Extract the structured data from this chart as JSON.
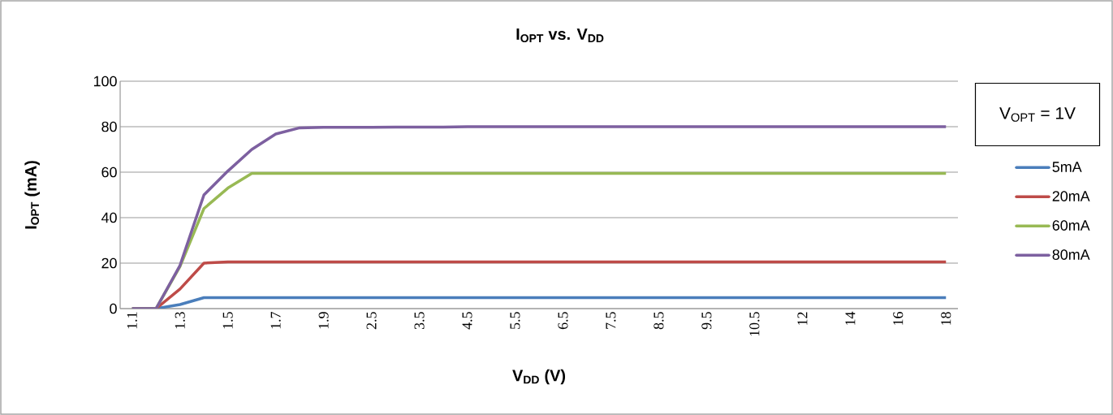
{
  "chart_data": {
    "type": "line",
    "title": "I$_{OPT}$ vs. V$_{DD}$",
    "xlabel": "V$_{DD}$ (V)",
    "ylabel": "I$_{OPT}$ (mA)",
    "legend_title": "V$_{OPT}$ = 1V",
    "categories": [
      "1.1",
      null,
      "1.3",
      null,
      "1.5",
      null,
      "1.7",
      null,
      "1.9",
      null,
      "2.5",
      null,
      "3.5",
      null,
      "4.5",
      null,
      "5.5",
      null,
      "6.5",
      null,
      "7.5",
      null,
      "8.5",
      null,
      "9.5",
      null,
      "10.5",
      null,
      "12",
      null,
      "14",
      null,
      "16",
      null,
      "18"
    ],
    "series": [
      {
        "name": "5mA",
        "color": "#4a7ebb",
        "values": [
          0,
          0,
          1.8,
          4.8,
          4.8,
          4.8,
          4.8,
          4.8,
          4.8,
          4.8,
          4.8,
          4.8,
          4.8,
          4.8,
          4.8,
          4.8,
          4.8,
          4.8,
          4.8,
          4.8,
          4.8,
          4.8,
          4.8,
          4.8,
          4.8,
          4.8,
          4.8,
          4.8,
          4.8,
          4.8,
          4.8,
          4.8,
          4.8,
          4.8,
          4.8
        ]
      },
      {
        "name": "20mA",
        "color": "#be4b48",
        "values": [
          0,
          0,
          8.6,
          20,
          20.5,
          20.5,
          20.5,
          20.5,
          20.5,
          20.5,
          20.5,
          20.5,
          20.5,
          20.5,
          20.5,
          20.5,
          20.5,
          20.5,
          20.5,
          20.5,
          20.5,
          20.5,
          20.5,
          20.5,
          20.5,
          20.5,
          20.5,
          20.5,
          20.5,
          20.5,
          20.5,
          20.5,
          20.5,
          20.5,
          20.5
        ]
      },
      {
        "name": "60mA",
        "color": "#98b954",
        "values": [
          0,
          0,
          18.5,
          44,
          53,
          59.5,
          59.5,
          59.5,
          59.5,
          59.5,
          59.5,
          59.5,
          59.5,
          59.5,
          59.5,
          59.5,
          59.5,
          59.5,
          59.5,
          59.5,
          59.5,
          59.5,
          59.5,
          59.5,
          59.5,
          59.5,
          59.5,
          59.5,
          59.5,
          59.5,
          59.5,
          59.5,
          59.5,
          59.5,
          59.5
        ]
      },
      {
        "name": "80mA",
        "color": "#7d60a0",
        "values": [
          0,
          0,
          19,
          50,
          60.5,
          70,
          76.8,
          79.5,
          79.7,
          79.7,
          79.7,
          79.8,
          79.8,
          79.8,
          80,
          80,
          80,
          80,
          80,
          80,
          80,
          80,
          80,
          80,
          80,
          80,
          80,
          80,
          80,
          80,
          80,
          80,
          80,
          80,
          80
        ]
      }
    ],
    "ylim": [
      0,
      100
    ],
    "yticks": [
      0,
      20,
      40,
      60,
      80,
      100
    ],
    "grid": "y",
    "legend": "right"
  }
}
